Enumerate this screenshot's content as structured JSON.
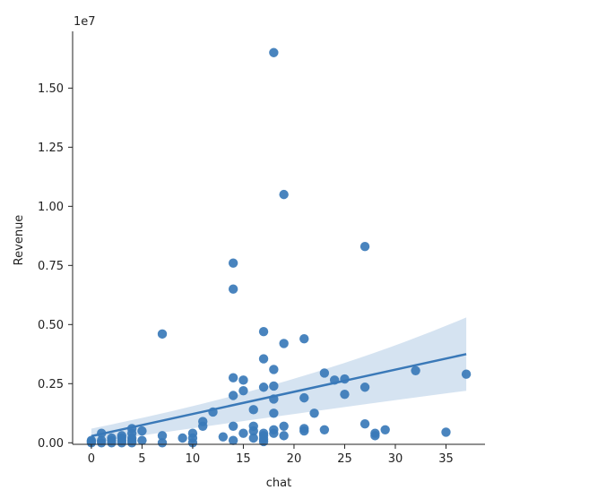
{
  "chart_data": {
    "type": "scatter",
    "title": "",
    "xlabel": "chat",
    "ylabel": "Revenue",
    "y_offset_text": "1e7",
    "xlim": [
      -1.85,
      38.85
    ],
    "ylim": [
      -0.0065,
      1.74
    ],
    "x_ticks": [
      0,
      5,
      10,
      15,
      20,
      25,
      30,
      35
    ],
    "x_tick_labels": [
      "0",
      "5",
      "10",
      "15",
      "20",
      "25",
      "30",
      "35"
    ],
    "y_ticks": [
      0.0,
      0.25,
      0.5,
      0.75,
      1.0,
      1.25,
      1.5
    ],
    "y_tick_labels": [
      "0.00",
      "0.25",
      "0.50",
      "0.75",
      "1.00",
      "1.25",
      "1.50"
    ],
    "grid": false,
    "legend": "none",
    "point_color": "#3a79b8",
    "line_color": "#3a79b8",
    "band_color": "#c7daec",
    "regression": {
      "x": [
        0,
        37
      ],
      "y": [
        0.028,
        0.375
      ],
      "ci_upper": [
        0.06,
        0.53
      ],
      "ci_lower": [
        0.0,
        0.22
      ],
      "ci_mid": [
        0.16,
        0.27
      ]
    },
    "points": [
      [
        0,
        0.01
      ],
      [
        0,
        0.005
      ],
      [
        0,
        0.0
      ],
      [
        1,
        0.04
      ],
      [
        1,
        0.01
      ],
      [
        1,
        0.0
      ],
      [
        2,
        0.02
      ],
      [
        2,
        0.01
      ],
      [
        2,
        0.0
      ],
      [
        3,
        0.03
      ],
      [
        3,
        0.02
      ],
      [
        3,
        0.01
      ],
      [
        3,
        0.0
      ],
      [
        4,
        0.06
      ],
      [
        4,
        0.04
      ],
      [
        4,
        0.02
      ],
      [
        4,
        0.01
      ],
      [
        4,
        0.0
      ],
      [
        5,
        0.05
      ],
      [
        5,
        0.01
      ],
      [
        7,
        0.46
      ],
      [
        7,
        0.03
      ],
      [
        7,
        0.0
      ],
      [
        9,
        0.02
      ],
      [
        10,
        0.04
      ],
      [
        10,
        0.02
      ],
      [
        10,
        0.0
      ],
      [
        11,
        0.09
      ],
      [
        11,
        0.07
      ],
      [
        12,
        0.13
      ],
      [
        13,
        0.025
      ],
      [
        14,
        0.76
      ],
      [
        14,
        0.65
      ],
      [
        14,
        0.275
      ],
      [
        14,
        0.2
      ],
      [
        14,
        0.07
      ],
      [
        14,
        0.01
      ],
      [
        15,
        0.265
      ],
      [
        15,
        0.22
      ],
      [
        15,
        0.04
      ],
      [
        16,
        0.14
      ],
      [
        16,
        0.07
      ],
      [
        16,
        0.05
      ],
      [
        16,
        0.02
      ],
      [
        17,
        0.47
      ],
      [
        17,
        0.355
      ],
      [
        17,
        0.235
      ],
      [
        17,
        0.04
      ],
      [
        17,
        0.03
      ],
      [
        17,
        0.015
      ],
      [
        17,
        0.005
      ],
      [
        18,
        1.65
      ],
      [
        18,
        0.31
      ],
      [
        18,
        0.24
      ],
      [
        18,
        0.185
      ],
      [
        18,
        0.125
      ],
      [
        18,
        0.055
      ],
      [
        18,
        0.04
      ],
      [
        19,
        1.05
      ],
      [
        19,
        0.42
      ],
      [
        19,
        0.07
      ],
      [
        19,
        0.03
      ],
      [
        21,
        0.44
      ],
      [
        21,
        0.19
      ],
      [
        21,
        0.06
      ],
      [
        21,
        0.05
      ],
      [
        22,
        0.125
      ],
      [
        23,
        0.295
      ],
      [
        23,
        0.055
      ],
      [
        24,
        0.265
      ],
      [
        25,
        0.27
      ],
      [
        25,
        0.205
      ],
      [
        27,
        0.83
      ],
      [
        27,
        0.235
      ],
      [
        27,
        0.08
      ],
      [
        28,
        0.04
      ],
      [
        28,
        0.03
      ],
      [
        29,
        0.055
      ],
      [
        32,
        0.305
      ],
      [
        35,
        0.045
      ],
      [
        37,
        0.29
      ]
    ]
  }
}
